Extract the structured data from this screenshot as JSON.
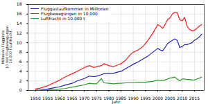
{
  "chart_data": {
    "type": "line",
    "x_label": "Jahr",
    "y_label": [
      "Millionen Fluggäste",
      "10.000 Flugbewegungen",
      "10.000 t Luftfracht"
    ],
    "x": [
      1950,
      1952,
      1955,
      1958,
      1960,
      1962,
      1965,
      1967,
      1970,
      1972,
      1974,
      1975,
      1977,
      1978,
      1980,
      1982,
      1984,
      1985,
      1987,
      1989,
      1990,
      1992,
      1994,
      1996,
      1998,
      2000,
      2001,
      2002,
      2003,
      2004,
      2005,
      2006,
      2007,
      2008,
      2009,
      2010,
      2011,
      2012,
      2013,
      2014,
      2015,
      2016,
      2017,
      2018
    ],
    "series": [
      {
        "name": "Fluggastaufkommen in Millionen",
        "color": "#2020b0",
        "values": [
          0.05,
          0.1,
          0.3,
          0.6,
          0.8,
          1.1,
          1.5,
          2.0,
          2.5,
          3.0,
          2.9,
          3.0,
          3.3,
          3.5,
          3.6,
          3.6,
          3.9,
          4.0,
          4.6,
          5.2,
          5.5,
          6.0,
          6.6,
          7.2,
          8.0,
          8.8,
          8.5,
          8.3,
          9.0,
          9.8,
          10.2,
          10.5,
          10.8,
          10.5,
          9.0,
          9.2,
          9.6,
          9.6,
          9.8,
          10.0,
          10.5,
          10.8,
          11.2,
          11.8
        ]
      },
      {
        "name": "Flugbewegungen in 10.000",
        "color": "#e8201e",
        "values": [
          0.3,
          0.5,
          1.0,
          1.7,
          2.2,
          2.8,
          3.5,
          4.0,
          4.8,
          5.2,
          4.8,
          5.0,
          5.2,
          5.6,
          5.2,
          5.0,
          5.4,
          5.6,
          6.4,
          7.6,
          8.0,
          8.5,
          9.2,
          10.5,
          12.0,
          13.8,
          13.5,
          13.0,
          13.8,
          14.8,
          15.2,
          16.0,
          16.4,
          16.3,
          14.8,
          14.6,
          15.3,
          13.5,
          12.8,
          12.5,
          12.6,
          13.0,
          13.5,
          13.8
        ]
      },
      {
        "name": "Luftfracht in 10.000 t",
        "color": "#2a9a2a",
        "values": [
          0.02,
          0.05,
          0.1,
          0.2,
          0.3,
          0.4,
          0.7,
          0.9,
          1.2,
          1.5,
          1.4,
          1.4,
          2.5,
          1.6,
          1.5,
          1.4,
          1.5,
          1.5,
          1.6,
          1.6,
          1.6,
          1.7,
          1.7,
          1.8,
          1.9,
          2.2,
          2.1,
          2.1,
          2.2,
          2.4,
          2.6,
          2.7,
          2.8,
          2.4,
          2.0,
          2.4,
          2.4,
          2.3,
          2.3,
          2.2,
          2.2,
          2.4,
          2.6,
          2.8
        ]
      }
    ],
    "xlim": [
      1947,
      2019
    ],
    "xticks": [
      1950,
      1955,
      1960,
      1965,
      1970,
      1975,
      1980,
      1985,
      1990,
      1995,
      2000,
      2005,
      2010,
      2015
    ],
    "ylim": [
      0,
      18
    ],
    "yticks": [
      0,
      2,
      4,
      6,
      8,
      10,
      12,
      14,
      16,
      18
    ],
    "grid": true,
    "legend": "top-left"
  }
}
